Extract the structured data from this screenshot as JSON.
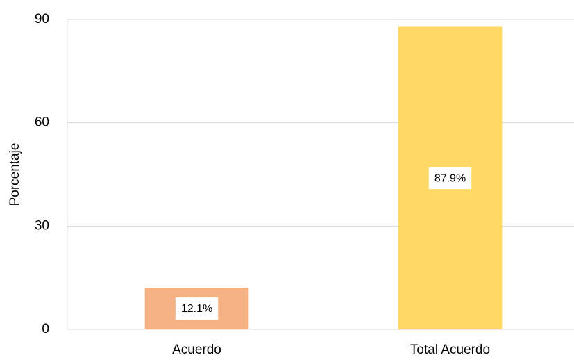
{
  "chart_data": {
    "type": "bar",
    "y_label": "Porcentaje",
    "categories": [
      "Acuerdo",
      "Total Acuerdo"
    ],
    "values": [
      12.1,
      87.9
    ],
    "value_labels": [
      "12.1%",
      "87.9%"
    ],
    "colors": [
      "#f4b183",
      "#ffd966"
    ],
    "ylim": [
      0,
      90
    ],
    "yticks": [
      0,
      30,
      60,
      90
    ],
    "grid": true
  }
}
